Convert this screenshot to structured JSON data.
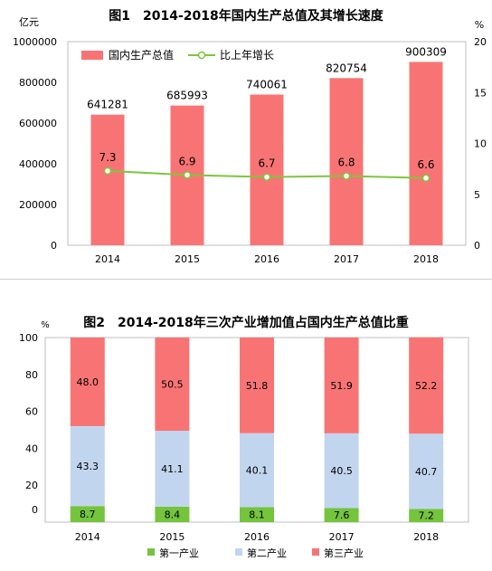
{
  "chart_data": [
    {
      "type": "bar",
      "title": "图1　2014-2018年国内生产总值及其增长速度",
      "y_unit_left": "亿元",
      "y_unit_right": "%",
      "categories": [
        "2014",
        "2015",
        "2016",
        "2017",
        "2018"
      ],
      "ylim_left": [
        0,
        1000000
      ],
      "yticks_left": [
        "0",
        "200000",
        "400000",
        "600000",
        "800000",
        "1000000"
      ],
      "ylim_right": [
        0,
        20
      ],
      "yticks_right": [
        "0",
        "5",
        "10",
        "15",
        "20"
      ],
      "legend_position": "top-left",
      "series": [
        {
          "name": "国内生产总值",
          "kind": "bar",
          "axis": "left",
          "color": "#f87474",
          "values": [
            641281,
            685993,
            740061,
            820754,
            900309
          ],
          "labels": [
            "641281",
            "685993",
            "740061",
            "820754",
            "900309"
          ]
        },
        {
          "name": "比上年增长",
          "kind": "line",
          "axis": "right",
          "color": "#7ec63d",
          "values": [
            7.3,
            6.9,
            6.7,
            6.8,
            6.6
          ],
          "labels": [
            "7.3",
            "6.9",
            "6.7",
            "6.8",
            "6.6"
          ]
        }
      ]
    },
    {
      "type": "bar",
      "subtype": "stacked",
      "title": "图2　2014-2018年三次产业增加值占国内生产总值比重",
      "y_unit": "%",
      "categories": [
        "2014",
        "2015",
        "2016",
        "2017",
        "2018"
      ],
      "ylim": [
        0,
        100
      ],
      "yticks": [
        "0",
        "20",
        "40",
        "60",
        "80",
        "100"
      ],
      "legend_position": "bottom",
      "series": [
        {
          "name": "第一产业",
          "color": "#74c43c",
          "values": [
            8.7,
            8.4,
            8.1,
            7.6,
            7.2
          ],
          "labels": [
            "8.7",
            "8.4",
            "8.1",
            "7.6",
            "7.2"
          ]
        },
        {
          "name": "第二产业",
          "color": "#c2d5ef",
          "values": [
            43.3,
            41.1,
            40.1,
            40.5,
            40.7
          ],
          "labels": [
            "43.3",
            "41.1",
            "40.1",
            "40.5",
            "40.7"
          ]
        },
        {
          "name": "第三产业",
          "color": "#f87474",
          "values": [
            48.0,
            50.5,
            51.8,
            51.9,
            52.2
          ],
          "labels": [
            "48.0",
            "50.5",
            "51.8",
            "51.9",
            "52.2"
          ]
        }
      ]
    }
  ]
}
